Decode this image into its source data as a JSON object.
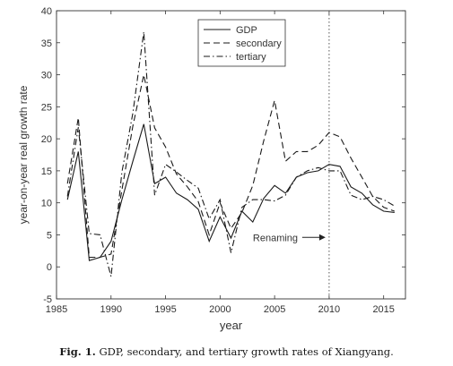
{
  "caption": {
    "label": "Fig. 1.",
    "text": "GDP, secondary, and tertiary growth rates of Xiangyang."
  },
  "chart_data": {
    "type": "line",
    "xlabel": "year",
    "ylabel": "year-on-year real growth rate",
    "xlim": [
      1985,
      2017
    ],
    "ylim": [
      -5,
      40
    ],
    "xticks": [
      1985,
      1990,
      1995,
      2000,
      2005,
      2010,
      2015
    ],
    "yticks": [
      -5,
      0,
      5,
      10,
      15,
      20,
      25,
      30,
      35,
      40
    ],
    "grid": false,
    "legend": "top-center",
    "annotations": [
      {
        "text": "Renaming",
        "x": 2010,
        "y": 4.6,
        "vline": 2010
      }
    ],
    "series": [
      {
        "name": "GDP",
        "style": "solid",
        "x": [
          1986,
          1987,
          1988,
          1989,
          1990,
          1991,
          1992,
          1993,
          1994,
          1995,
          1996,
          1997,
          1998,
          1999,
          2000,
          2001,
          2002,
          2003,
          2004,
          2005,
          2006,
          2007,
          2008,
          2009,
          2010,
          2011,
          2012,
          2013,
          2014,
          2015,
          2016
        ],
        "y": [
          10.5,
          18,
          1,
          1.5,
          4,
          10.5,
          16.5,
          22.3,
          13,
          14,
          11.5,
          10.5,
          9,
          4,
          7.8,
          4.5,
          8.7,
          7,
          10.7,
          12.7,
          11.5,
          14,
          14.7,
          15,
          16,
          15.7,
          12.5,
          11.5,
          9.7,
          8.7,
          8.5
        ]
      },
      {
        "name": "secondary",
        "style": "dashed",
        "x": [
          1986,
          1987,
          1988,
          1989,
          1990,
          1991,
          1992,
          1993,
          1994,
          1995,
          1996,
          1997,
          1998,
          1999,
          2000,
          2001,
          2002,
          2003,
          2004,
          2005,
          2006,
          2007,
          2008,
          2009,
          2010,
          2011,
          2012,
          2013,
          2014,
          2015,
          2016
        ],
        "y": [
          13,
          23.3,
          1.5,
          1.5,
          2,
          12,
          22,
          30,
          21.7,
          18.7,
          14.5,
          12.5,
          10.2,
          5,
          10,
          6,
          8.5,
          12.7,
          19.7,
          26,
          16.5,
          18,
          18,
          19,
          21,
          20.3,
          17,
          14,
          11,
          9.3,
          8.7
        ]
      },
      {
        "name": "tertiary",
        "style": "dashdot",
        "x": [
          1986,
          1987,
          1988,
          1989,
          1990,
          1991,
          1992,
          1993,
          1994,
          1995,
          1996,
          1997,
          1998,
          1999,
          2000,
          2001,
          2002,
          2003,
          2004,
          2005,
          2006,
          2007,
          2008,
          2009,
          2010,
          2011,
          2012,
          2013,
          2014,
          2015,
          2016
        ],
        "y": [
          11,
          21.8,
          5.2,
          5,
          -1.5,
          14.8,
          24,
          36.7,
          11.2,
          16,
          14.8,
          13.5,
          12.3,
          7.5,
          10.5,
          2.2,
          9.3,
          10.5,
          10.5,
          10.3,
          11.2,
          14,
          15,
          15.5,
          15,
          15,
          11.2,
          10.5,
          11,
          10.5,
          9.5
        ]
      }
    ]
  }
}
